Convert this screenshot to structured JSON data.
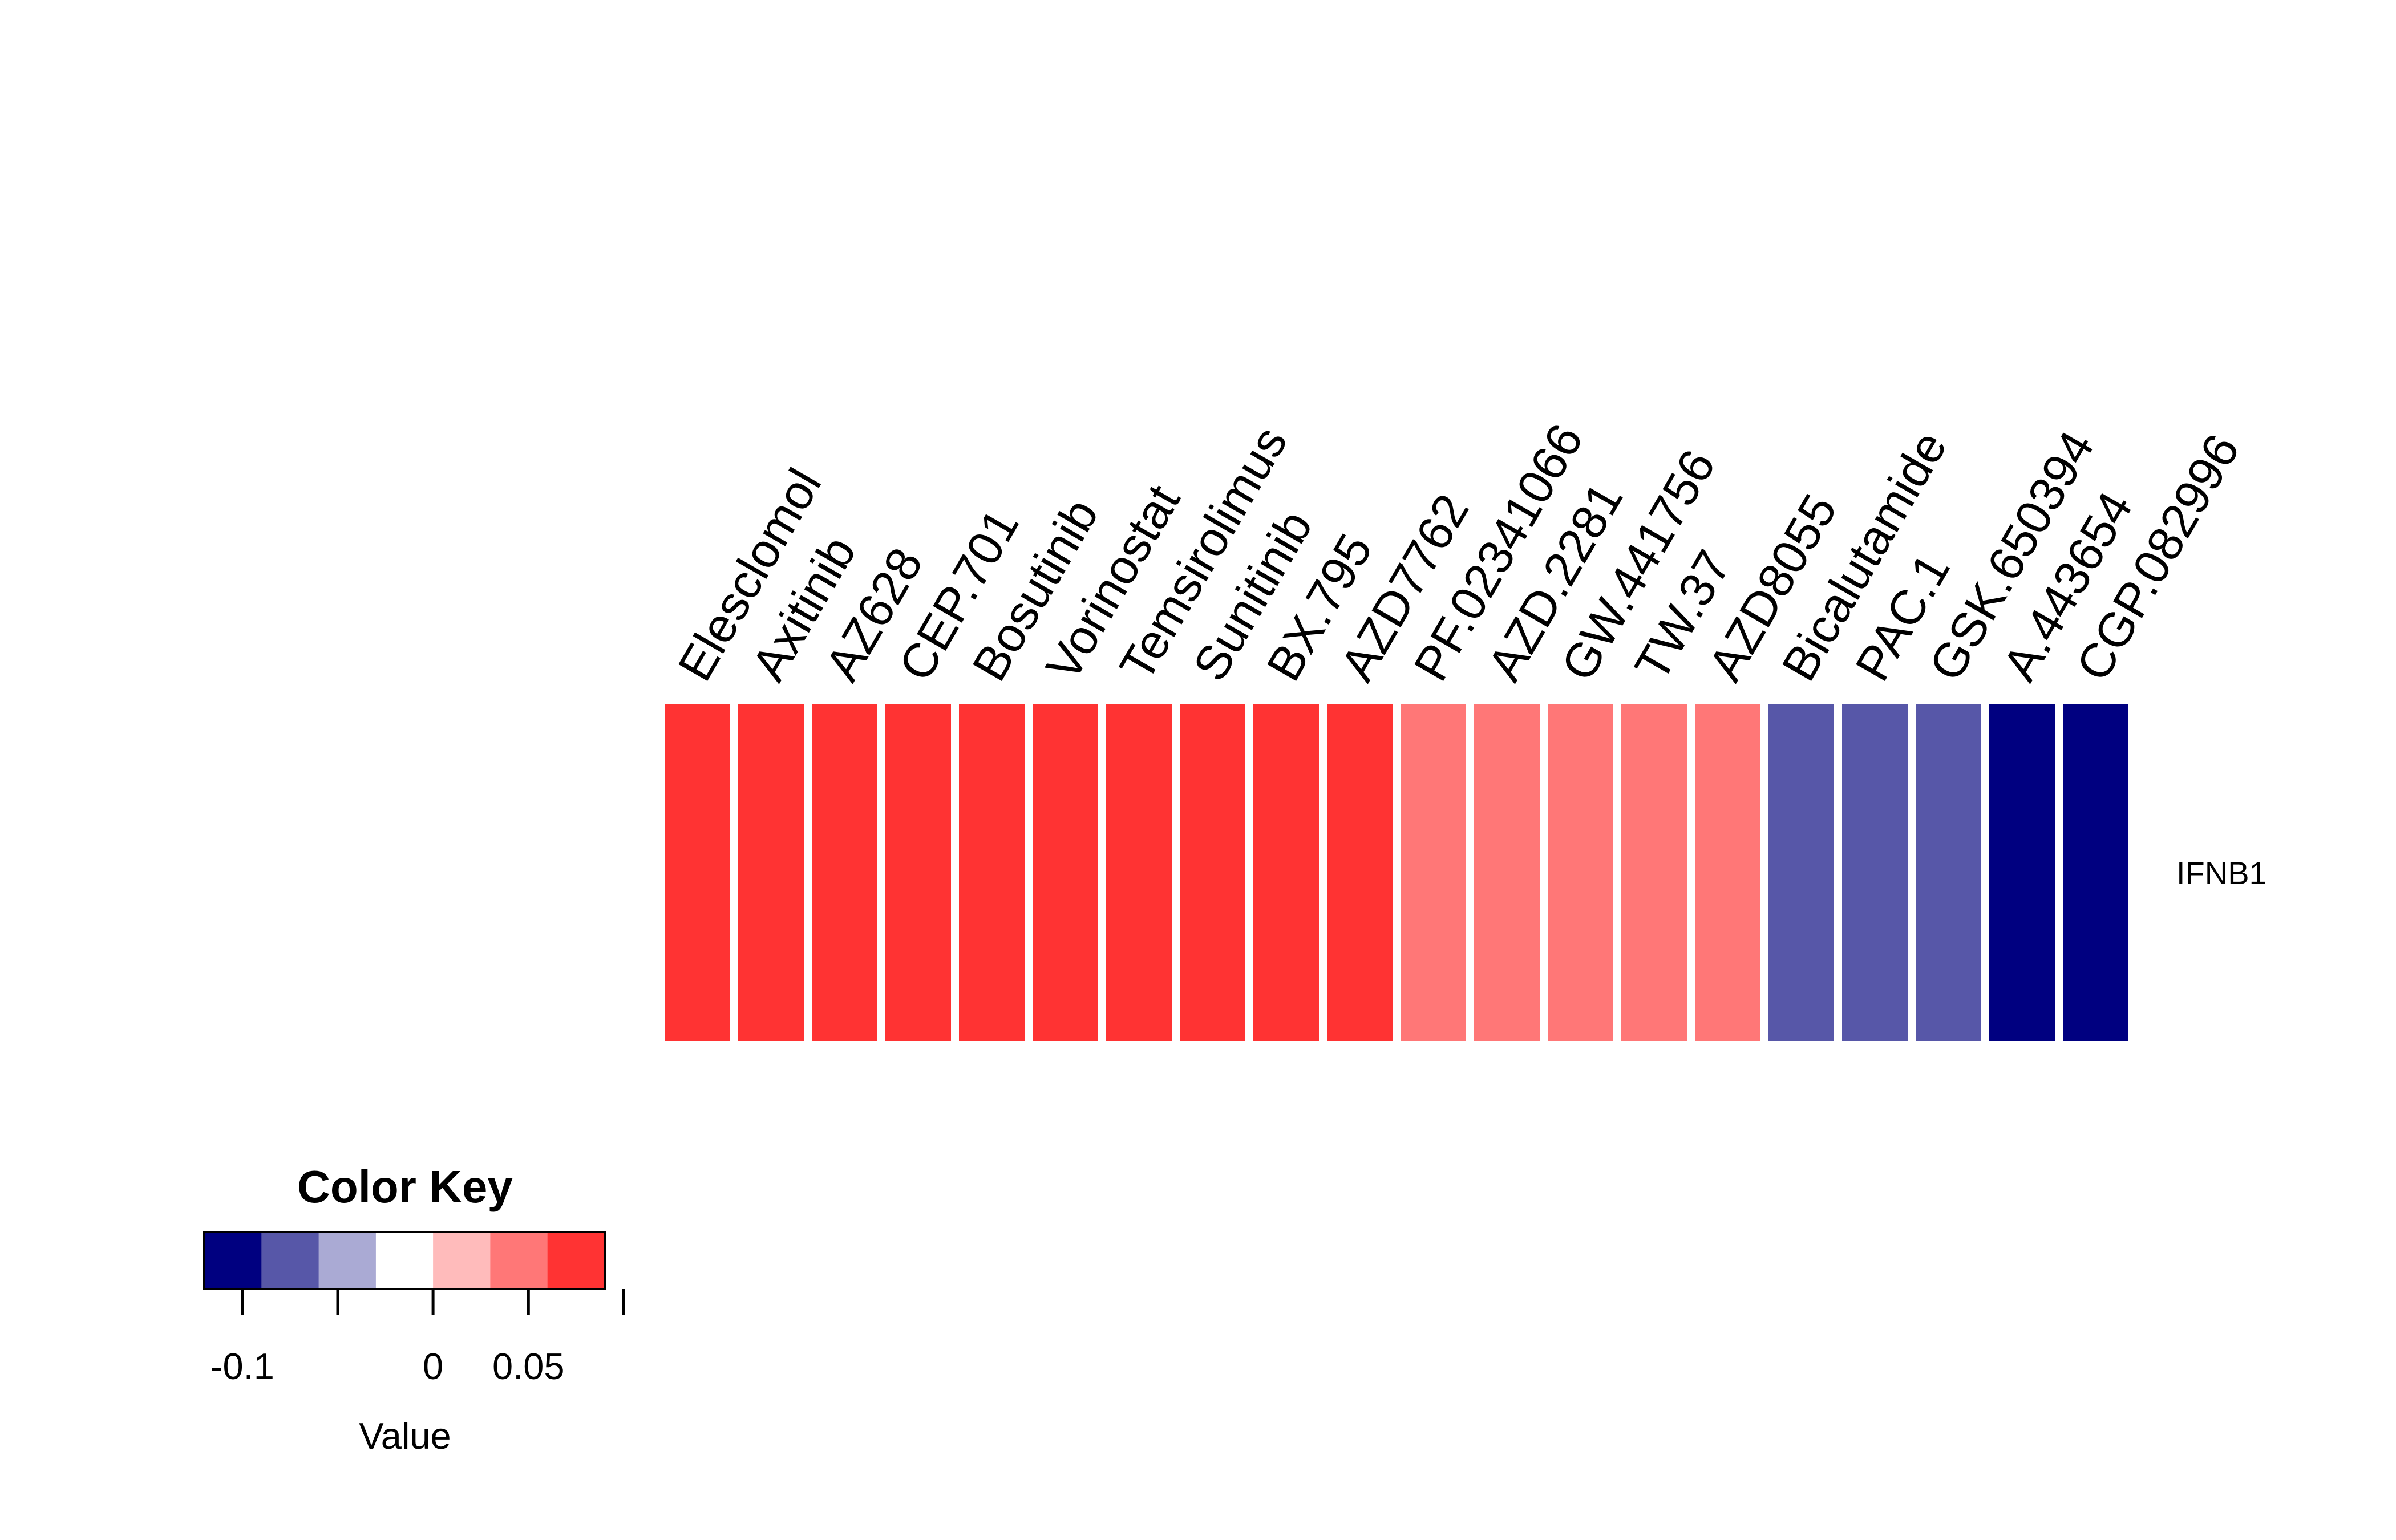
{
  "chart_data": {
    "type": "heatmap",
    "columns": [
      "Elesclomol",
      "Axitinib",
      "AZ628",
      "CEP.701",
      "Bosutinib",
      "Vorinostat",
      "Temsirolimus",
      "Sunitinib",
      "BX.795",
      "AZD7762",
      "PF.02341066",
      "AZD.2281",
      "GW.441756",
      "TW.37",
      "AZD8055",
      "Bicalutamide",
      "PAC.1",
      "GSK.650394",
      "A.443654",
      "CGP.082996"
    ],
    "rows": [
      "IFNB1"
    ],
    "values": [
      [
        0.08,
        0.08,
        0.08,
        0.08,
        0.08,
        0.08,
        0.08,
        0.08,
        0.08,
        0.08,
        0.05,
        0.05,
        0.05,
        0.05,
        0.05,
        -0.08,
        -0.08,
        -0.08,
        -0.11,
        -0.11
      ]
    ],
    "color_key": {
      "title": "Color Key",
      "xlabel": "Value",
      "range": [
        -0.12,
        0.09
      ],
      "bins": [
        -0.12,
        -0.09,
        -0.06,
        -0.03,
        0.0,
        0.03,
        0.06,
        0.09
      ],
      "colors": [
        "#000080",
        "#5757A8",
        "#AAAAD4",
        "#FFFFFF",
        "#FFBBBB",
        "#FF7777",
        "#FF3333"
      ],
      "tick_values": [
        -0.1,
        -0.05,
        0,
        0.05,
        0.1
      ],
      "tick_labels": [
        "-0.1",
        "",
        "0",
        "0.05",
        ""
      ]
    }
  }
}
